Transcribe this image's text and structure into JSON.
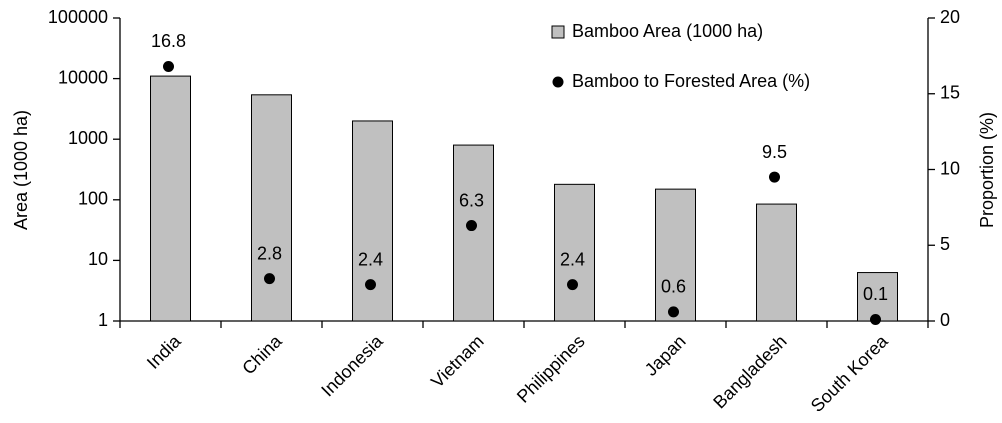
{
  "chart_data": {
    "type": "bar",
    "categories": [
      "India",
      "China",
      "Indonesia",
      "Vietnam",
      "Philippines",
      "Japan",
      "Bangladesh",
      "South Korea"
    ],
    "series": [
      {
        "name": "Bamboo Area (1000 ha)",
        "type": "bar",
        "color": "#c0c0c0",
        "values": [
          11000,
          5400,
          2000,
          800,
          180,
          150,
          85,
          6.3
        ]
      },
      {
        "name": "Bamboo to Forested Area (%)",
        "type": "scatter",
        "axis": "y2",
        "color": "#000000",
        "values": [
          16.8,
          2.8,
          2.4,
          6.3,
          2.4,
          0.6,
          9.5,
          0.1
        ]
      }
    ],
    "ylabel": "Area (1000 ha)",
    "y2label": "Proportion (%)",
    "ylim": [
      1,
      100000
    ],
    "yticks": [
      1,
      10,
      100,
      1000,
      10000,
      100000
    ],
    "log_scale": true,
    "y2lim": [
      0,
      20
    ],
    "y2ticks": [
      0,
      5,
      10,
      15,
      20
    ],
    "legend": "upper right"
  }
}
